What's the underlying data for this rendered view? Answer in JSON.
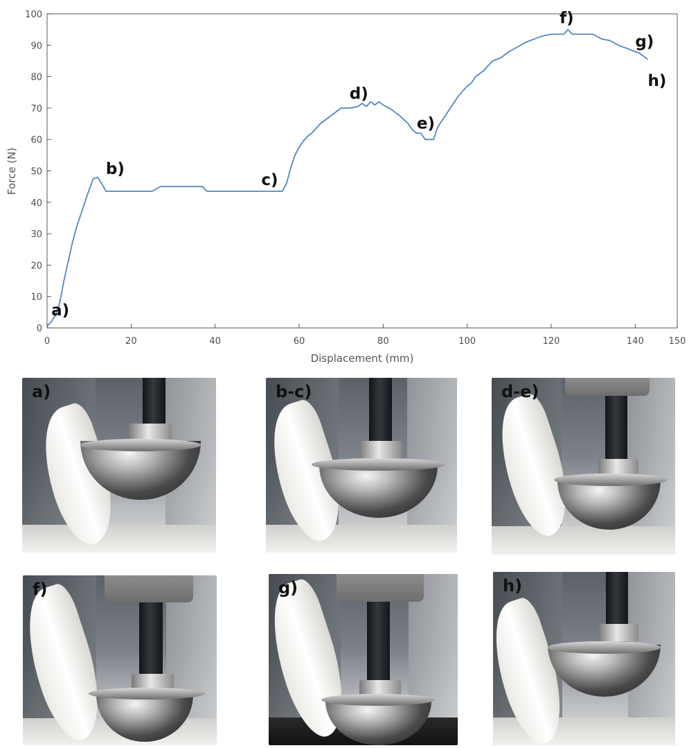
{
  "chart_data": {
    "type": "line",
    "xlabel": "Displacement (mm)",
    "ylabel": "Force (N)",
    "xlim": [
      0,
      150
    ],
    "ylim": [
      0,
      100
    ],
    "xticks": [
      0,
      20,
      40,
      60,
      80,
      100,
      120,
      140,
      150
    ],
    "yticks": [
      0,
      10,
      20,
      30,
      40,
      50,
      60,
      70,
      80,
      90,
      100
    ],
    "grid": false,
    "line_color": "#4f86c6",
    "series": [
      {
        "x": [
          0,
          1,
          2,
          3,
          4,
          5,
          6,
          7,
          8,
          9,
          10,
          11,
          12,
          13,
          14,
          16,
          20,
          25,
          27,
          28,
          30,
          35,
          37,
          38,
          40,
          45,
          50,
          55,
          56,
          57,
          58,
          59,
          60,
          61,
          62,
          63,
          64,
          65,
          66,
          67,
          68,
          69,
          70,
          72,
          74,
          75,
          76,
          77,
          78,
          79,
          80,
          82,
          84,
          86,
          87,
          88,
          89,
          90,
          91,
          92,
          93,
          94,
          96,
          98,
          100,
          101,
          102,
          104,
          106,
          108,
          110,
          112,
          114,
          116,
          118,
          120,
          122,
          123,
          124,
          125,
          126,
          128,
          130,
          132,
          134,
          136,
          138,
          140,
          141,
          142,
          143
        ],
        "y": [
          0.5,
          2,
          4,
          8,
          15,
          21,
          27,
          32,
          36,
          40,
          44,
          47.5,
          48,
          46,
          43.5,
          43.5,
          43.5,
          43.5,
          45,
          45,
          45,
          45,
          45,
          43.5,
          43.5,
          43.5,
          43.5,
          43.5,
          43.5,
          46,
          51,
          55,
          57.5,
          59.5,
          61,
          62,
          63.5,
          65,
          66,
          67,
          68,
          69,
          70,
          70,
          70.5,
          71.5,
          70.5,
          72,
          71,
          72,
          71,
          69.5,
          67.5,
          65,
          63,
          62,
          62,
          60,
          60,
          60,
          64,
          66,
          70,
          74,
          77,
          78,
          80,
          82,
          85,
          86,
          88,
          89.5,
          91,
          92,
          93,
          93.5,
          93.5,
          93.5,
          95,
          93.5,
          93.5,
          93.5,
          93.5,
          92,
          91.5,
          90,
          89,
          88,
          87.5,
          86.5,
          85.5
        ]
      }
    ],
    "annotations": [
      {
        "text": "a)",
        "x": 1,
        "y": 4
      },
      {
        "text": "b)",
        "x": 14,
        "y": 49
      },
      {
        "text": "c)",
        "x": 51,
        "y": 45.5
      },
      {
        "text": "d)",
        "x": 72,
        "y": 73
      },
      {
        "text": "e)",
        "x": 88,
        "y": 63.5
      },
      {
        "text": "f)",
        "x": 122,
        "y": 97
      },
      {
        "text": "g)",
        "x": 140,
        "y": 89.5
      },
      {
        "text": "h)",
        "x": 143,
        "y": 77
      }
    ]
  },
  "photos": [
    {
      "label": "a)",
      "icon": "hip-implant-test-photo"
    },
    {
      "label": "b-c)",
      "icon": "hip-implant-test-photo"
    },
    {
      "label": "d-e)",
      "icon": "hip-implant-test-photo"
    },
    {
      "label": "f)",
      "icon": "hip-implant-test-photo"
    },
    {
      "label": "g)",
      "icon": "hip-implant-test-photo"
    },
    {
      "label": "h)",
      "icon": "hip-implant-test-photo"
    }
  ]
}
